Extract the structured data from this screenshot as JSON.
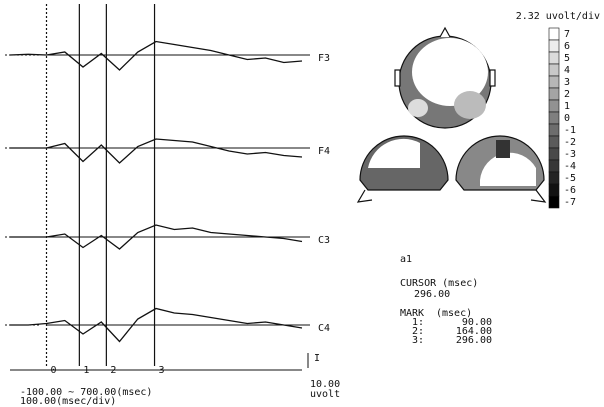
{
  "plot": {
    "x_range_label": "-100.00 ~ 700.00(msec)",
    "x_div_label": "100.00(msec/div)",
    "xlim": [
      -100,
      700
    ],
    "times": [
      -100,
      -50,
      0,
      50,
      100,
      150,
      200,
      250,
      300,
      350,
      400,
      450,
      500,
      550,
      600,
      650,
      700
    ],
    "channels": [
      {
        "name": "F3",
        "values": [
          0,
          0.5,
          0,
          2,
          -8,
          1,
          -10,
          2,
          9,
          7,
          5,
          3,
          0,
          -3,
          -2,
          -5,
          -4
        ]
      },
      {
        "name": "F4",
        "values": [
          0,
          0,
          0,
          3,
          -9,
          2,
          -10,
          1,
          6,
          5,
          4,
          1,
          -2,
          -4,
          -3,
          -5,
          -6
        ]
      },
      {
        "name": "C3",
        "values": [
          0,
          0,
          0,
          2,
          -7,
          1,
          -8,
          3,
          8,
          5,
          6,
          3,
          2,
          1,
          0,
          -1,
          -3
        ]
      },
      {
        "name": "C4",
        "values": [
          0,
          0,
          1,
          3,
          -6,
          2,
          -11,
          4,
          11,
          8,
          7,
          5,
          3,
          1,
          2,
          0,
          -2
        ]
      }
    ],
    "markers": [
      {
        "label": "0",
        "value": 0
      },
      {
        "label": "1",
        "value": 90
      },
      {
        "label": "2",
        "value": 164
      },
      {
        "label": "3",
        "value": 296
      }
    ],
    "axis_end_label": "I",
    "scale_bar": {
      "label": "10.00",
      "unit": "uvolt",
      "value": 10
    }
  },
  "topomap": {
    "scale_label": "2.32 uvolt/div",
    "colorbar_ticks": [
      7,
      6,
      5,
      4,
      3,
      2,
      1,
      0,
      -1,
      -2,
      -3,
      -4,
      -5,
      -6,
      -7
    ]
  },
  "cursor": {
    "file": "a1",
    "title": "CURSOR (msec)",
    "value": "296.00"
  },
  "marks": {
    "title": "MARK",
    "unit": "(msec)",
    "rows": [
      {
        "label": "1:",
        "value": "90.00"
      },
      {
        "label": "2:",
        "value": "164.00"
      },
      {
        "label": "3:",
        "value": "296.00"
      }
    ]
  }
}
